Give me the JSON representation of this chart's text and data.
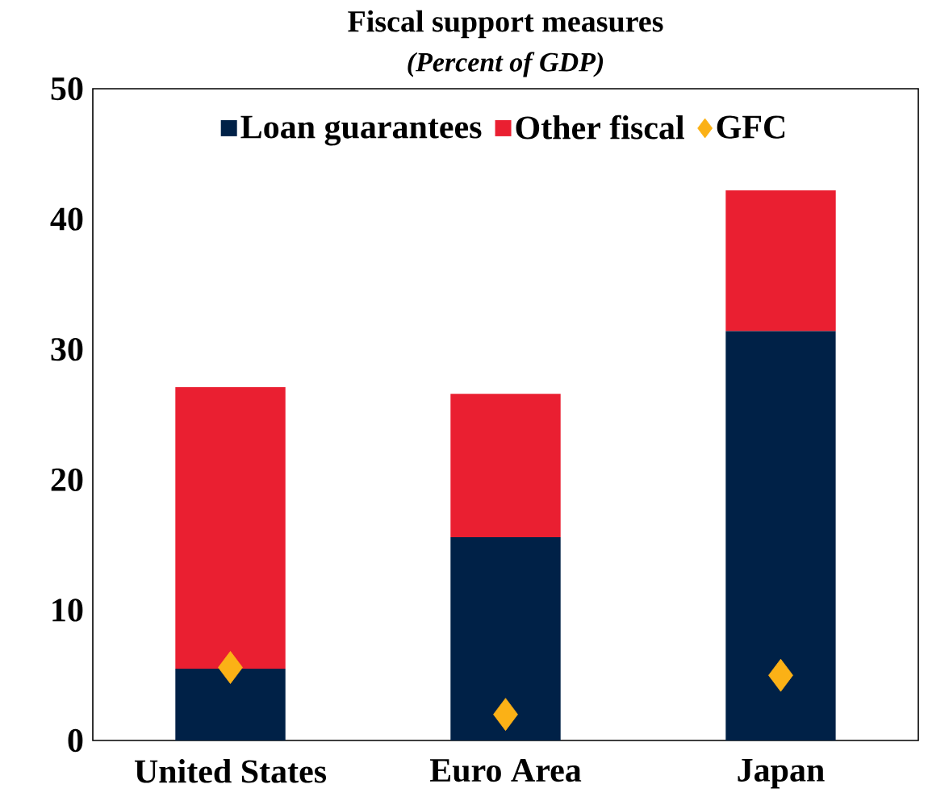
{
  "chart_data": {
    "type": "bar",
    "title": "Fiscal support measures",
    "subtitle": "(Percent of GDP)",
    "stacked": true,
    "categories": [
      "United States",
      "Euro Area",
      "Japan"
    ],
    "series": [
      {
        "name": "Loan guarantees",
        "color": "#002147",
        "values": [
          5.5,
          15.6,
          31.4
        ]
      },
      {
        "name": "Other fiscal",
        "color": "#ea1f31",
        "values": [
          21.6,
          11.0,
          10.8
        ]
      },
      {
        "name": "GFC",
        "type": "scatter",
        "marker": "diamond",
        "color": "#fbb116",
        "values": [
          5.6,
          2.0,
          5.0
        ]
      }
    ],
    "ylim": [
      0,
      50
    ],
    "yticks": [
      0,
      10,
      20,
      30,
      40,
      50
    ],
    "grid": false,
    "legend": "top"
  }
}
